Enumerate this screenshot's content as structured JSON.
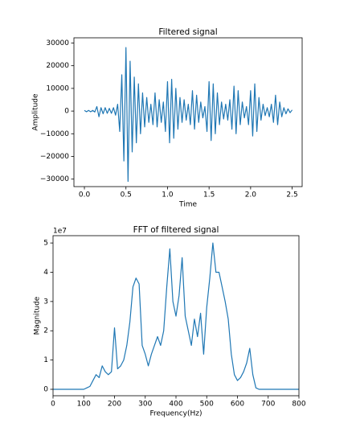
{
  "chart_data": [
    {
      "type": "line",
      "title": "Filtered signal",
      "xlabel": "Time",
      "ylabel": "Amplitude",
      "color": "#1f77b4",
      "x": [
        0,
        0.025,
        0.05,
        0.075,
        0.1,
        0.125,
        0.15,
        0.175,
        0.2,
        0.225,
        0.25,
        0.275,
        0.3,
        0.325,
        0.35,
        0.375,
        0.4,
        0.425,
        0.45,
        0.475,
        0.5,
        0.525,
        0.55,
        0.575,
        0.6,
        0.625,
        0.65,
        0.675,
        0.7,
        0.725,
        0.75,
        0.775,
        0.8,
        0.825,
        0.85,
        0.875,
        0.9,
        0.925,
        0.95,
        0.975,
        1.0,
        1.025,
        1.05,
        1.075,
        1.1,
        1.125,
        1.15,
        1.175,
        1.2,
        1.225,
        1.25,
        1.275,
        1.3,
        1.325,
        1.35,
        1.375,
        1.4,
        1.425,
        1.45,
        1.475,
        1.5,
        1.525,
        1.55,
        1.575,
        1.6,
        1.625,
        1.65,
        1.675,
        1.7,
        1.725,
        1.75,
        1.775,
        1.8,
        1.825,
        1.85,
        1.875,
        1.9,
        1.925,
        1.95,
        1.975,
        2.0,
        2.025,
        2.05,
        2.075,
        2.1,
        2.125,
        2.15,
        2.175,
        2.2,
        2.225,
        2.25,
        2.275,
        2.3,
        2.325,
        2.35,
        2.375,
        2.4,
        2.425,
        2.45,
        2.475,
        2.5
      ],
      "values": [
        300,
        -300,
        300,
        -300,
        300,
        -400,
        2000,
        -2500,
        1500,
        -1200,
        1500,
        -1000,
        1200,
        -1000,
        1500,
        -1800,
        3000,
        -9000,
        16000,
        -22000,
        28000,
        -31000,
        22000,
        -18000,
        15000,
        -14000,
        12000,
        -10000,
        8000,
        -7000,
        6000,
        -5000,
        3000,
        -6000,
        8000,
        -7000,
        5000,
        -5000,
        4000,
        -9000,
        13000,
        -14000,
        14000,
        -12000,
        10000,
        -8000,
        6000,
        -5000,
        5000,
        -4000,
        3000,
        -6000,
        9000,
        -8000,
        7000,
        -5000,
        4000,
        -3000,
        2000,
        -9000,
        13000,
        -13000,
        12000,
        -10000,
        8000,
        -6000,
        4000,
        -3500,
        3000,
        -4000,
        5000,
        -8000,
        11000,
        -10000,
        9000,
        -6000,
        4000,
        -3000,
        2000,
        -6000,
        9000,
        -11000,
        12000,
        -9000,
        6000,
        -4000,
        3000,
        -2000,
        1500,
        -2500,
        3000,
        -5000,
        7000,
        -6000,
        4000,
        -2500,
        1500,
        -1200,
        1000,
        -700,
        500
      ],
      "xlim": [
        -0.126,
        2.62
      ],
      "xticks": [
        {
          "value": 0,
          "label": "0.0"
        },
        0.5,
        {
          "value": 1,
          "label": "1.0"
        },
        1.5,
        {
          "value": 2,
          "label": "2.0"
        },
        2.5
      ],
      "ylim": [
        -33300,
        32300
      ],
      "yticks": [
        {
          "value": -30000,
          "label": "−30000"
        },
        {
          "value": -20000,
          "label": "−20000"
        },
        {
          "value": -10000,
          "label": "−10000"
        },
        0,
        10000,
        20000,
        30000
      ]
    },
    {
      "type": "line",
      "title": "FFT of filtered signal",
      "xlabel": "Frequency(Hz)",
      "ylabel": "Magnitude",
      "offset_label": "1e7",
      "color": "#1f77b4",
      "x": [
        0,
        10,
        20,
        30,
        40,
        50,
        60,
        70,
        80,
        90,
        100,
        110,
        120,
        130,
        140,
        150,
        160,
        170,
        180,
        190,
        200,
        210,
        220,
        230,
        240,
        250,
        260,
        270,
        280,
        290,
        300,
        310,
        320,
        330,
        340,
        350,
        360,
        370,
        380,
        390,
        400,
        410,
        420,
        430,
        440,
        450,
        460,
        470,
        480,
        490,
        500,
        510,
        520,
        530,
        540,
        550,
        560,
        570,
        580,
        590,
        600,
        610,
        620,
        630,
        640,
        650,
        660,
        670,
        680,
        690,
        700,
        710,
        720,
        730,
        740,
        750,
        760,
        770,
        780,
        790,
        800
      ],
      "values": [
        0,
        0,
        0,
        0,
        0,
        0,
        0,
        0,
        0,
        0,
        0,
        0.05,
        0.1,
        0.3,
        0.5,
        0.4,
        0.8,
        0.6,
        0.5,
        0.6,
        2.1,
        0.7,
        0.8,
        1.0,
        1.5,
        2.3,
        3.5,
        3.8,
        3.6,
        1.5,
        1.2,
        0.8,
        1.2,
        1.5,
        1.8,
        1.5,
        2.0,
        3.5,
        4.8,
        3.0,
        2.5,
        3.2,
        4.5,
        2.5,
        2.0,
        1.5,
        2.4,
        1.8,
        2.6,
        1.2,
        2.8,
        3.8,
        5.0,
        4.0,
        4.0,
        3.5,
        3.0,
        2.4,
        1.2,
        0.5,
        0.3,
        0.4,
        0.6,
        0.9,
        1.4,
        0.5,
        0.05,
        0,
        0,
        0,
        0,
        0,
        0,
        0,
        0,
        0,
        0,
        0,
        0,
        0,
        0
      ],
      "xlim": [
        0,
        800
      ],
      "xticks": [
        0,
        100,
        200,
        300,
        400,
        500,
        600,
        700,
        800
      ],
      "ylim": [
        -0.22,
        5.25
      ],
      "yticks": [
        0,
        1,
        2,
        3,
        4,
        5
      ]
    }
  ]
}
